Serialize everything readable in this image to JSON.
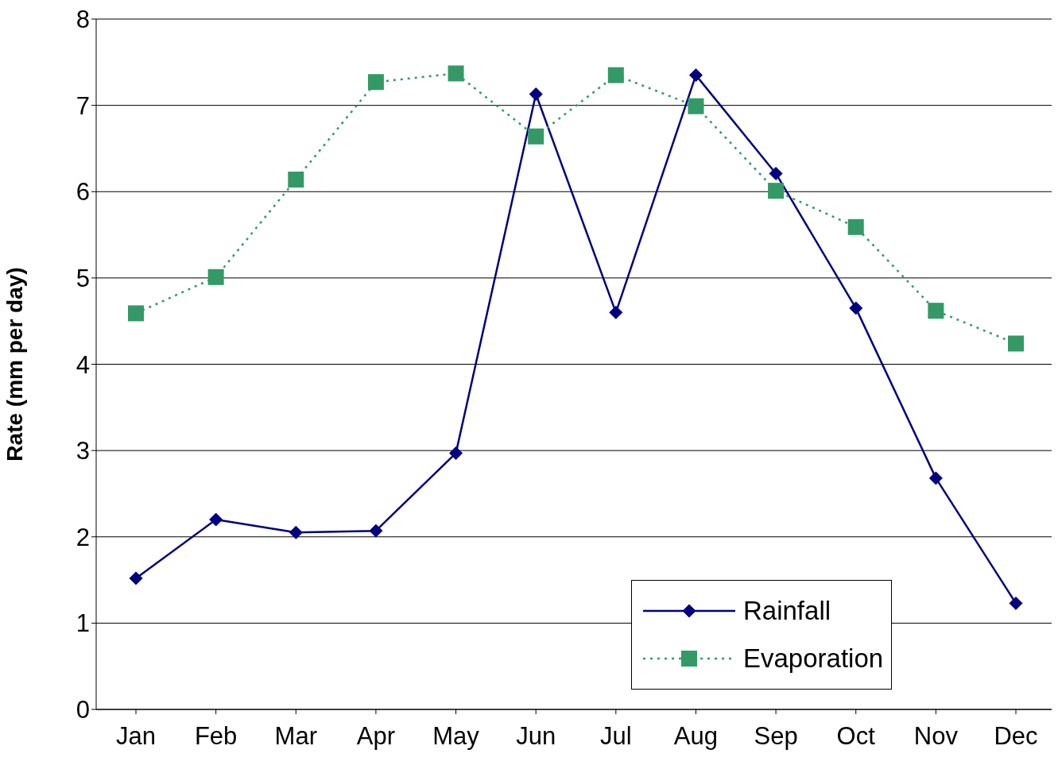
{
  "chart_data": {
    "type": "line",
    "ylabel": "Rate (mm per day)",
    "categories": [
      "Jan",
      "Feb",
      "Mar",
      "Apr",
      "May",
      "Jun",
      "Jul",
      "Aug",
      "Sep",
      "Oct",
      "Nov",
      "Dec"
    ],
    "series": [
      {
        "name": "Rainfall",
        "color": "#000080",
        "marker": "diamond",
        "line_style": "solid",
        "values": [
          1.52,
          2.2,
          2.05,
          2.07,
          2.97,
          7.13,
          4.6,
          7.35,
          6.21,
          4.65,
          2.68,
          1.23
        ]
      },
      {
        "name": "Evaporation",
        "color": "#339966",
        "marker": "square",
        "line_style": "dotted",
        "values": [
          4.59,
          5.01,
          6.14,
          7.27,
          7.37,
          6.64,
          7.35,
          6.99,
          6.01,
          5.59,
          4.62,
          4.24
        ]
      }
    ],
    "ylim": [
      0,
      8
    ],
    "yticks": [
      0,
      1,
      2,
      3,
      4,
      5,
      6,
      7,
      8
    ],
    "grid": "y",
    "legend": "bottom right"
  }
}
